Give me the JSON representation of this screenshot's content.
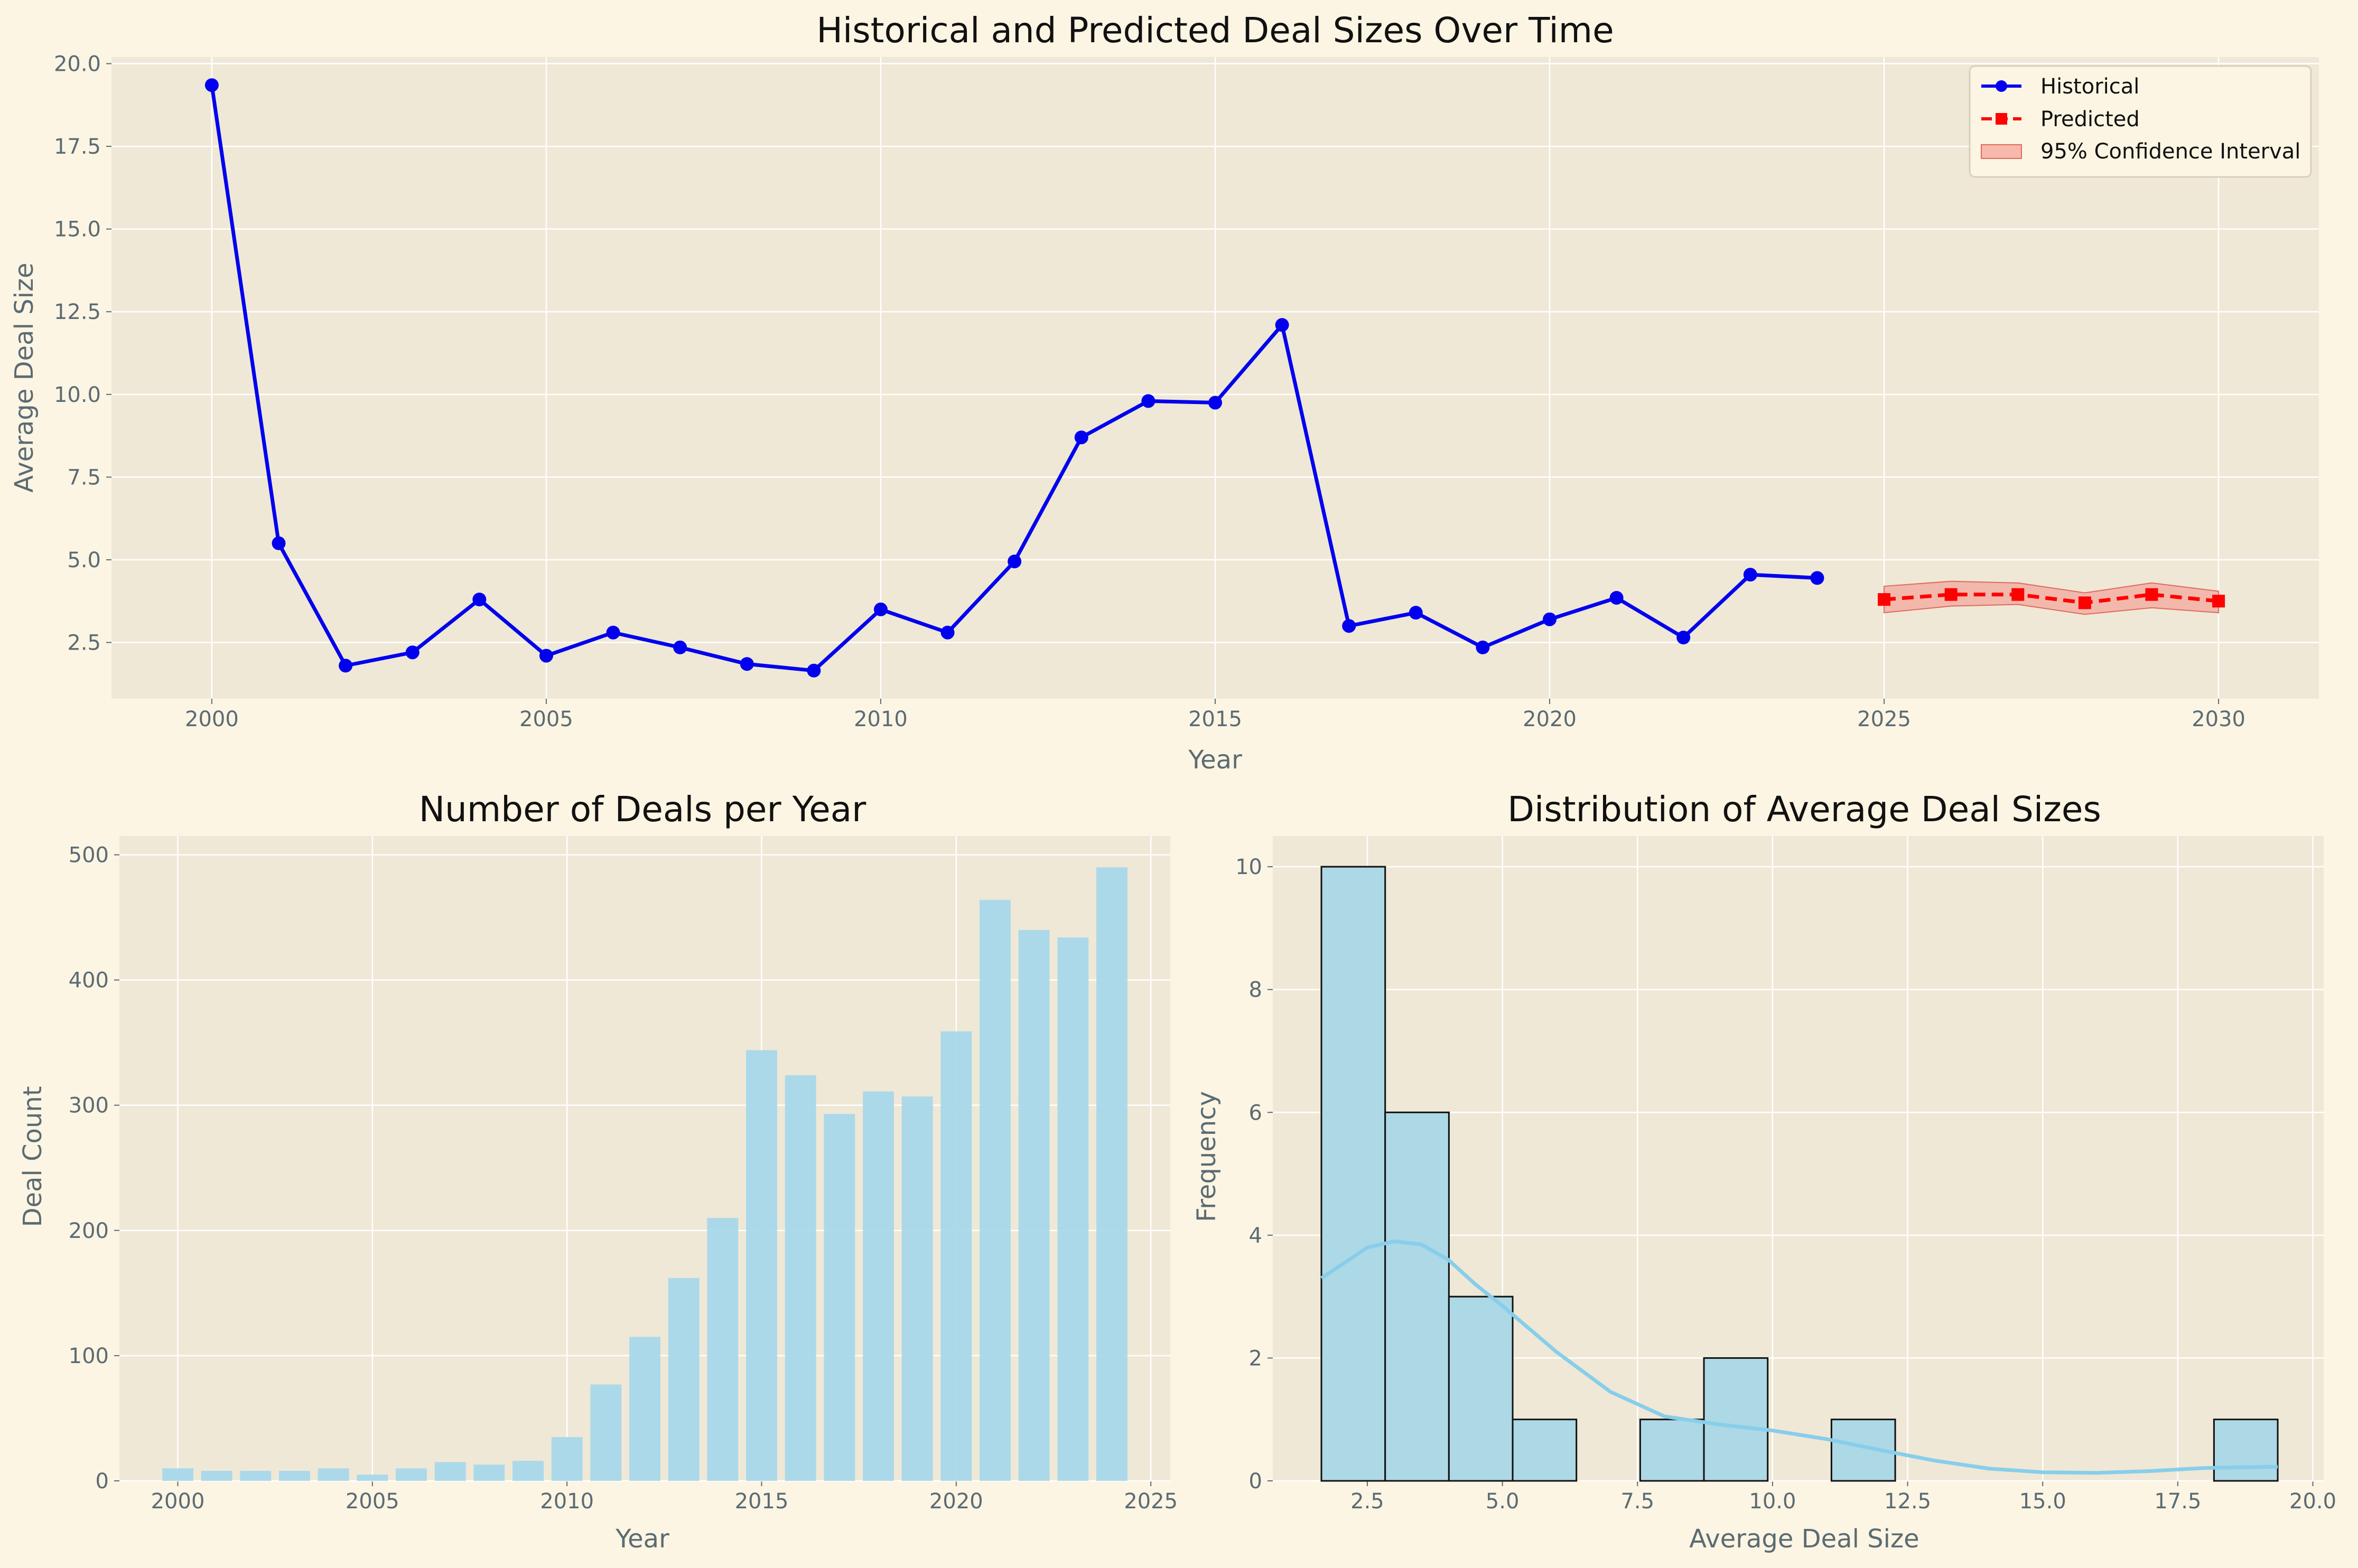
{
  "chart_data": [
    {
      "type": "line",
      "title": "Historical and Predicted Deal Sizes Over Time",
      "xlabel": "Year",
      "ylabel": "Average Deal Size",
      "xlim": [
        1998.5,
        2031.5
      ],
      "ylim": [
        0.8,
        20.2
      ],
      "xticks": [
        "2000",
        "2005",
        "2010",
        "2015",
        "2020",
        "2025",
        "2030"
      ],
      "yticks": [
        "2.5",
        "5.0",
        "7.5",
        "10.0",
        "12.5",
        "15.0",
        "17.5",
        "20.0"
      ],
      "grid": true,
      "legend_position": "top-right",
      "series": [
        {
          "name": "Historical",
          "color": "#0000ee",
          "marker": "circle",
          "x": [
            2000,
            2001,
            2002,
            2003,
            2004,
            2005,
            2006,
            2007,
            2008,
            2009,
            2010,
            2011,
            2012,
            2013,
            2014,
            2015,
            2016,
            2017,
            2018,
            2019,
            2020,
            2021,
            2022,
            2023,
            2024
          ],
          "y": [
            19.35,
            5.5,
            1.8,
            2.2,
            3.8,
            2.1,
            2.8,
            2.35,
            1.85,
            1.65,
            3.5,
            2.8,
            4.95,
            8.7,
            9.8,
            9.75,
            12.1,
            3.0,
            3.4,
            2.35,
            3.2,
            3.85,
            2.65,
            4.55,
            4.45
          ]
        },
        {
          "name": "Predicted",
          "color": "#ff0000",
          "marker": "square",
          "x": [
            2025,
            2026,
            2027,
            2028,
            2029,
            2030
          ],
          "y": [
            3.8,
            3.95,
            3.95,
            3.7,
            3.95,
            3.75
          ]
        }
      ],
      "confidence_interval": {
        "name": "95% Confidence Interval",
        "color": "#f4a49a",
        "x": [
          2025,
          2026,
          2027,
          2028,
          2029,
          2030
        ],
        "lower": [
          3.4,
          3.6,
          3.65,
          3.35,
          3.55,
          3.4
        ],
        "upper": [
          4.2,
          4.35,
          4.3,
          4.0,
          4.3,
          4.05
        ]
      }
    },
    {
      "type": "bar",
      "title": "Number of Deals per Year",
      "xlabel": "Year",
      "ylabel": "Deal Count",
      "xlim": [
        1998.5,
        2025.5
      ],
      "ylim": [
        0,
        515
      ],
      "xticks": [
        "2000",
        "2005",
        "2010",
        "2015",
        "2020",
        "2025"
      ],
      "yticks": [
        "0",
        "100",
        "200",
        "300",
        "400",
        "500"
      ],
      "grid": true,
      "color": "#a8d8ea",
      "categories": [
        2000,
        2001,
        2002,
        2003,
        2004,
        2005,
        2006,
        2007,
        2008,
        2009,
        2010,
        2011,
        2012,
        2013,
        2014,
        2015,
        2016,
        2017,
        2018,
        2019,
        2020,
        2021,
        2022,
        2023,
        2024
      ],
      "values": [
        10,
        8,
        8,
        8,
        10,
        5,
        10,
        15,
        13,
        16,
        35,
        77,
        115,
        162,
        210,
        344,
        324,
        293,
        311,
        307,
        359,
        464,
        440,
        434,
        490
      ]
    },
    {
      "type": "histogram",
      "title": "Distribution of Average Deal Sizes",
      "xlabel": "Average Deal Size",
      "ylabel": "Frequency",
      "xlim": [
        0.75,
        20.2
      ],
      "ylim": [
        0,
        10.5
      ],
      "xticks": [
        "2.5",
        "5.0",
        "7.5",
        "10.0",
        "12.5",
        "15.0",
        "17.5",
        "20.0"
      ],
      "yticks": [
        "0",
        "2",
        "4",
        "6",
        "8",
        "10"
      ],
      "grid": true,
      "bar_color": "#add8e6",
      "kde_color": "#87ceeb",
      "bin_edges": [
        1.65,
        2.83,
        4.01,
        5.19,
        6.37,
        7.55,
        8.73,
        9.91,
        11.09,
        12.27,
        13.45,
        14.63,
        15.81,
        16.99,
        18.17,
        19.35
      ],
      "counts": [
        10,
        6,
        3,
        1,
        0,
        1,
        2,
        0,
        1,
        0,
        0,
        0,
        0,
        0,
        1
      ],
      "kde": {
        "x": [
          1.65,
          2.5,
          3.0,
          3.5,
          4.0,
          4.5,
          5.0,
          6.0,
          7.0,
          8.0,
          9.0,
          10.0,
          11.0,
          12.0,
          13.0,
          14.0,
          15.0,
          16.0,
          17.0,
          18.0,
          19.35
        ],
        "y": [
          3.3,
          3.8,
          3.9,
          3.85,
          3.6,
          3.2,
          2.85,
          2.1,
          1.45,
          1.05,
          0.92,
          0.82,
          0.68,
          0.5,
          0.33,
          0.2,
          0.14,
          0.13,
          0.16,
          0.21,
          0.23
        ]
      }
    }
  ]
}
